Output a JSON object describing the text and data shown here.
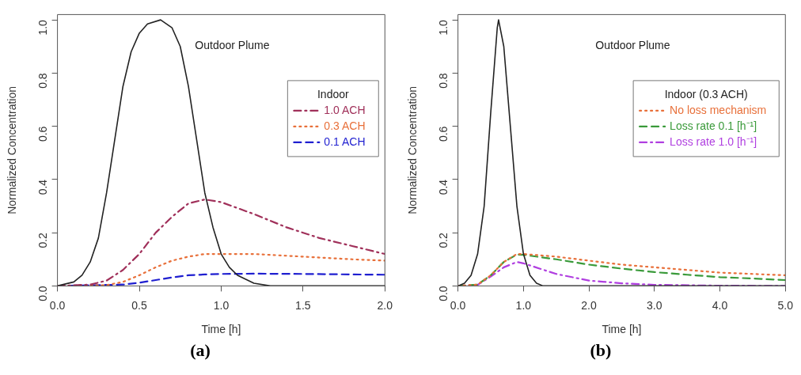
{
  "chart_data": [
    {
      "type": "line",
      "xlabel": "Time [h]",
      "ylabel": "Normalized Concentration",
      "legend_title": "Indoor",
      "legend": "right",
      "grid": false,
      "marker": "none",
      "xlim": [
        0,
        2
      ],
      "ylim": [
        0,
        1.02
      ],
      "xticks": [
        {
          "value": 0,
          "label": "0.0"
        },
        {
          "value": 0.5,
          "label": "0.5"
        },
        {
          "value": 1,
          "label": "1.0"
        },
        {
          "value": 1.5,
          "label": "1.5"
        },
        {
          "value": 2,
          "label": "2.0"
        }
      ],
      "yticks": [
        {
          "value": 0,
          "label": "0.0"
        },
        {
          "value": 0.2,
          "label": "0.2"
        },
        {
          "value": 0.4,
          "label": "0.4"
        },
        {
          "value": 0.6,
          "label": "0.6"
        },
        {
          "value": 0.8,
          "label": "0.8"
        },
        {
          "value": 1,
          "label": "1.0"
        }
      ],
      "series": [
        {
          "color": "#222222",
          "line_style": "solid",
          "x": [
            0,
            0.1,
            0.15,
            0.2,
            0.25,
            0.3,
            0.35,
            0.4,
            0.45,
            0.5,
            0.55,
            0.63,
            0.7,
            0.75,
            0.8,
            0.85,
            0.9,
            0.95,
            1.0,
            1.05,
            1.1,
            1.2,
            1.3,
            2.0
          ],
          "values": [
            0,
            0.015,
            0.04,
            0.09,
            0.18,
            0.35,
            0.55,
            0.75,
            0.88,
            0.95,
            0.985,
            1.0,
            0.97,
            0.9,
            0.75,
            0.55,
            0.35,
            0.22,
            0.12,
            0.07,
            0.04,
            0.01,
            0,
            0
          ]
        },
        {
          "name": "1.0 ACH",
          "color": "#a0305a",
          "line_style": "dashdot",
          "x": [
            0,
            0.2,
            0.3,
            0.4,
            0.5,
            0.6,
            0.7,
            0.8,
            0.9,
            1.0,
            1.2,
            1.4,
            1.6,
            1.8,
            2.0
          ],
          "values": [
            0,
            0.005,
            0.02,
            0.06,
            0.12,
            0.2,
            0.26,
            0.31,
            0.325,
            0.315,
            0.27,
            0.22,
            0.18,
            0.15,
            0.12
          ]
        },
        {
          "name": "0.3 ACH",
          "color": "#e8703a",
          "line_style": "dotted",
          "x": [
            0,
            0.3,
            0.4,
            0.5,
            0.6,
            0.7,
            0.8,
            0.9,
            1.0,
            1.2,
            1.5,
            1.8,
            2.0
          ],
          "values": [
            0,
            0.003,
            0.015,
            0.04,
            0.07,
            0.095,
            0.11,
            0.12,
            0.12,
            0.12,
            0.11,
            0.1,
            0.095
          ]
        },
        {
          "name": "0.1 ACH",
          "color": "#1f1fd0",
          "line_style": "dashed",
          "x": [
            0,
            0.4,
            0.5,
            0.6,
            0.7,
            0.8,
            0.9,
            1.0,
            1.2,
            1.5,
            2.0
          ],
          "values": [
            0,
            0.005,
            0.012,
            0.022,
            0.032,
            0.04,
            0.043,
            0.045,
            0.046,
            0.045,
            0.042
          ]
        }
      ],
      "annotations": [
        "Outdoor Plume",
        "(a)"
      ]
    },
    {
      "type": "line",
      "xlabel": "Time [h]",
      "ylabel": "Normalized Concentration",
      "legend_title": "Indoor (0.3 ACH)",
      "legend": "right",
      "grid": false,
      "marker": "none",
      "xlim": [
        0,
        5
      ],
      "ylim": [
        0,
        1.02
      ],
      "xticks": [
        {
          "value": 0,
          "label": "0.0"
        },
        {
          "value": 1,
          "label": "1.0"
        },
        {
          "value": 2,
          "label": "2.0"
        },
        {
          "value": 3,
          "label": "3.0"
        },
        {
          "value": 4,
          "label": "4.0"
        },
        {
          "value": 5,
          "label": "5.0"
        }
      ],
      "yticks": [
        {
          "value": 0,
          "label": "0.0"
        },
        {
          "value": 0.2,
          "label": "0.2"
        },
        {
          "value": 0.4,
          "label": "0.4"
        },
        {
          "value": 0.6,
          "label": "0.6"
        },
        {
          "value": 0.8,
          "label": "0.8"
        },
        {
          "value": 1,
          "label": "1.0"
        }
      ],
      "series": [
        {
          "color": "#222222",
          "line_style": "solid",
          "x": [
            0,
            0.1,
            0.2,
            0.3,
            0.4,
            0.5,
            0.6,
            0.62,
            0.7,
            0.8,
            0.9,
            1.0,
            1.1,
            1.2,
            1.3,
            5.0
          ],
          "values": [
            0,
            0.01,
            0.04,
            0.12,
            0.3,
            0.65,
            0.97,
            1.0,
            0.9,
            0.6,
            0.3,
            0.12,
            0.04,
            0.01,
            0,
            0
          ]
        },
        {
          "name": "No loss mechanism",
          "color": "#e8703a",
          "line_style": "dotted",
          "x": [
            0,
            0.3,
            0.5,
            0.7,
            0.9,
            1.0,
            1.5,
            2.0,
            2.5,
            3.0,
            3.5,
            4.0,
            4.5,
            5.0
          ],
          "values": [
            0,
            0.005,
            0.04,
            0.09,
            0.12,
            0.12,
            0.11,
            0.095,
            0.08,
            0.07,
            0.06,
            0.05,
            0.045,
            0.04
          ]
        },
        {
          "name": "Loss rate 0.1 [h⁻¹]",
          "color": "#3a9a3a",
          "line_style": "dashed",
          "x": [
            0,
            0.3,
            0.5,
            0.7,
            0.9,
            1.0,
            1.5,
            2.0,
            2.5,
            3.0,
            3.5,
            4.0,
            4.5,
            5.0
          ],
          "values": [
            0,
            0.005,
            0.04,
            0.09,
            0.118,
            0.117,
            0.1,
            0.08,
            0.065,
            0.052,
            0.042,
            0.033,
            0.028,
            0.022
          ]
        },
        {
          "name": "Loss rate 1.0 [h⁻¹]",
          "color": "#b03fe0",
          "line_style": "dashdot",
          "x": [
            0,
            0.3,
            0.5,
            0.7,
            0.9,
            1.0,
            1.5,
            2.0,
            2.5,
            3.0,
            4.0,
            5.0
          ],
          "values": [
            0,
            0.004,
            0.035,
            0.07,
            0.09,
            0.085,
            0.045,
            0.02,
            0.01,
            0.004,
            0.001,
            0
          ]
        }
      ],
      "annotations": [
        "Outdoor Plume",
        "(b)"
      ]
    }
  ]
}
